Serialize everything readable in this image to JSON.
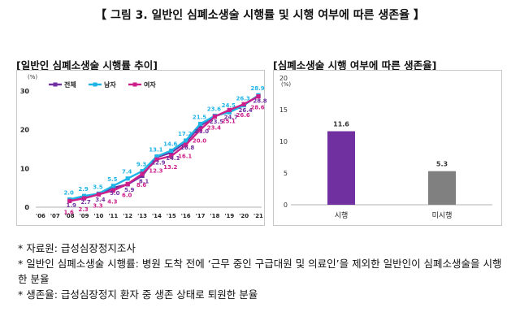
{
  "figure_title": "【 그림 3. 일반인 심폐소생술 시행률 및 시행 여부에 따른 생존율 】",
  "charts": {
    "left_title": "[일반인 심폐소생술 시행률 추이]",
    "right_title": "[심폐소생술 시행 여부에 따른 생존율]"
  },
  "chart_data": [
    {
      "type": "line",
      "title": "[일반인 심폐소생술 시행률 추이]",
      "unit_label": "(%)",
      "x": [
        "'06",
        "'07",
        "'08",
        "'09",
        "'10",
        "'11",
        "'12",
        "'13",
        "'14",
        "'15",
        "'16",
        "'17",
        "'18",
        "'19",
        "'20",
        "'21"
      ],
      "ylim": [
        0,
        30
      ],
      "yticks": [
        0,
        10,
        20,
        30
      ],
      "legend_position": "top-left",
      "series": [
        {
          "name": "전체",
          "color": "#7030a0",
          "values": [
            null,
            null,
            1.9,
            2.7,
            3.4,
            5.0,
            5.9,
            8.1,
            12.9,
            14.1,
            16.8,
            21.0,
            23.5,
            24.7,
            26.4,
            28.8
          ]
        },
        {
          "name": "남자",
          "color": "#1fb4e6",
          "values": [
            null,
            null,
            2.0,
            2.9,
            3.5,
            5.5,
            7.4,
            9.3,
            13.1,
            14.6,
            17.2,
            21.5,
            23.6,
            24.5,
            26.3,
            28.9
          ]
        },
        {
          "name": "여자",
          "color": "#cc1f8a",
          "values": [
            null,
            null,
            1.6,
            2.3,
            3.3,
            4.3,
            6.0,
            8.6,
            12.3,
            13.2,
            16.1,
            20.0,
            23.4,
            25.1,
            26.6,
            28.6
          ]
        }
      ]
    },
    {
      "type": "bar",
      "title": "[심폐소생술 시행 여부에 따른 생존율]",
      "unit_label": "(%)",
      "categories": [
        "시행",
        "미시행"
      ],
      "values": [
        11.6,
        5.3
      ],
      "colors": [
        "#7030a0",
        "#808080"
      ],
      "ylim": [
        0,
        20
      ],
      "yticks": [
        0,
        5,
        10,
        15,
        20
      ]
    }
  ],
  "notes": [
    "* 자료원: 급성심장정지조사",
    "* 일반인 심폐소생술 시행률: 병원 도착 전에 ‘근무 중인 구급대원 및 의료인’을 제외한 일반인이 심폐소생술을 시행한 분율",
    "* 생존율: 급성심장정지 환자 중 생존 상태로 퇴원한 분율"
  ]
}
